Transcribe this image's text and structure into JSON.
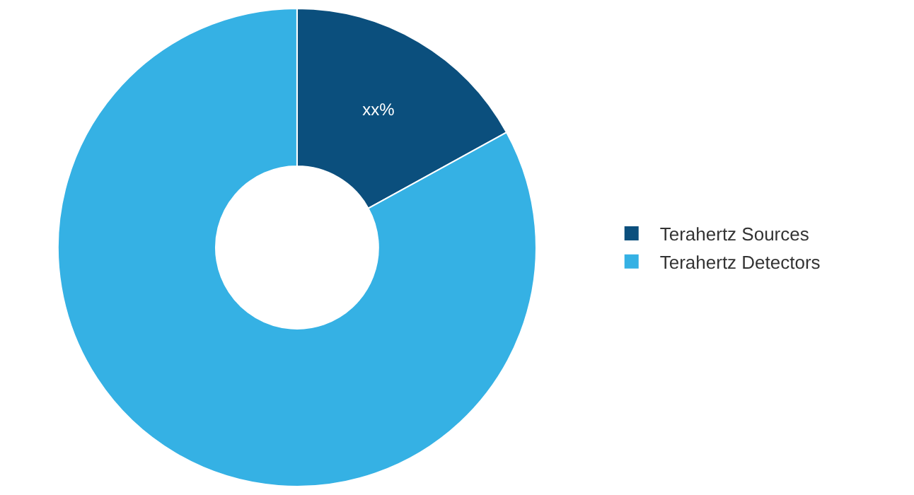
{
  "chart_data": {
    "type": "donut",
    "categories": [
      "Terahertz Sources",
      "Terahertz Detectors"
    ],
    "values": [
      17,
      83
    ],
    "colors": [
      "#0b4f7d",
      "#35b1e4"
    ],
    "value_labels": [
      "xx%",
      null
    ],
    "legend": "right"
  }
}
